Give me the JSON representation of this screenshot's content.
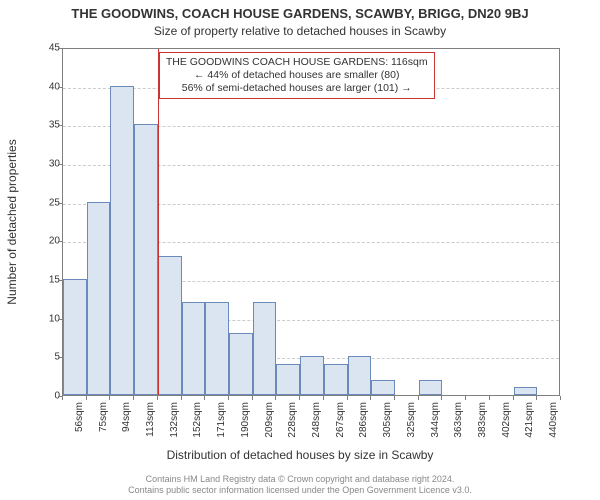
{
  "title": "THE GOODWINS, COACH HOUSE GARDENS, SCAWBY, BRIGG, DN20 9BJ",
  "subtitle": "Size of property relative to detached houses in Scawby",
  "ylabel": "Number of detached properties",
  "xlabel": "Distribution of detached houses by size in Scawby",
  "attribution_line1": "Contains HM Land Registry data © Crown copyright and database right 2024.",
  "attribution_line2": "Contains public sector information licensed under the Open Government Licence v3.0.",
  "chart": {
    "type": "histogram",
    "background_color": "#ffffff",
    "border_color": "#7f7f7f",
    "grid_color": "#cccccc",
    "bar_fill": "#dbe5f1",
    "bar_stroke": "#6b8abc",
    "marker_color": "#cc3333",
    "annotation_border": "#cc3333",
    "font_color": "#333333",
    "y": {
      "min": 0,
      "max": 45,
      "step": 5
    },
    "x_categories": [
      "56sqm",
      "75sqm",
      "94sqm",
      "113sqm",
      "132sqm",
      "152sqm",
      "171sqm",
      "190sqm",
      "209sqm",
      "228sqm",
      "248sqm",
      "267sqm",
      "286sqm",
      "305sqm",
      "325sqm",
      "344sqm",
      "363sqm",
      "383sqm",
      "402sqm",
      "421sqm",
      "440sqm"
    ],
    "values": [
      15,
      25,
      40,
      35,
      18,
      12,
      12,
      8,
      12,
      4,
      5,
      4,
      5,
      2,
      0,
      2,
      0,
      0,
      0,
      1,
      0
    ],
    "bar_width_ratio": 1.0,
    "marker_category_index": 3,
    "annotation": {
      "line1": "THE GOODWINS COACH HOUSE GARDENS: 116sqm",
      "line2": "← 44% of detached houses are smaller (80)",
      "line3": "56% of semi-detached houses are larger (101) →"
    },
    "title_fontsize": 13,
    "subtitle_fontsize": 12,
    "axis_label_fontsize": 12,
    "tick_fontsize": 10
  }
}
